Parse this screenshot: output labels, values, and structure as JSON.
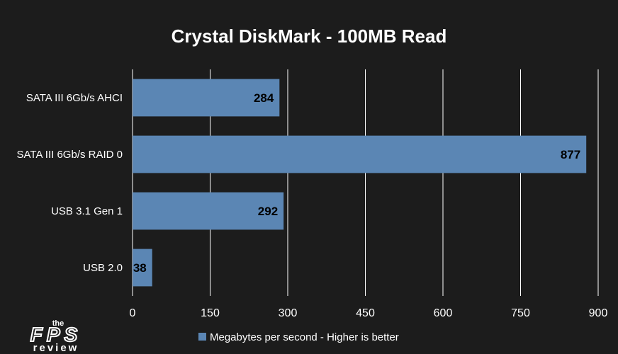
{
  "chart_data": {
    "type": "bar",
    "orientation": "horizontal",
    "title": "Crystal DiskMark - 100MB Read",
    "categories": [
      "SATA III 6Gb/s AHCI",
      "SATA III 6Gb/s RAID 0",
      "USB 3.1 Gen 1",
      "USB 2.0"
    ],
    "series": [
      {
        "name": "Megabytes per second - Higher is better",
        "values": [
          284,
          877,
          292,
          38
        ],
        "color": "#5b86b4"
      }
    ],
    "xlim": [
      0,
      900
    ],
    "ticks": [
      0,
      150,
      300,
      450,
      600,
      750,
      900
    ],
    "grid": true,
    "legend": "bottom",
    "data_labels": true
  },
  "logo": {
    "top": "the",
    "middle": "FPS",
    "bottom": "review"
  },
  "colors": {
    "background": "#1c1c1c",
    "bar": "#5b86b4",
    "grid": "#ffffff",
    "label_text": "#000000"
  }
}
